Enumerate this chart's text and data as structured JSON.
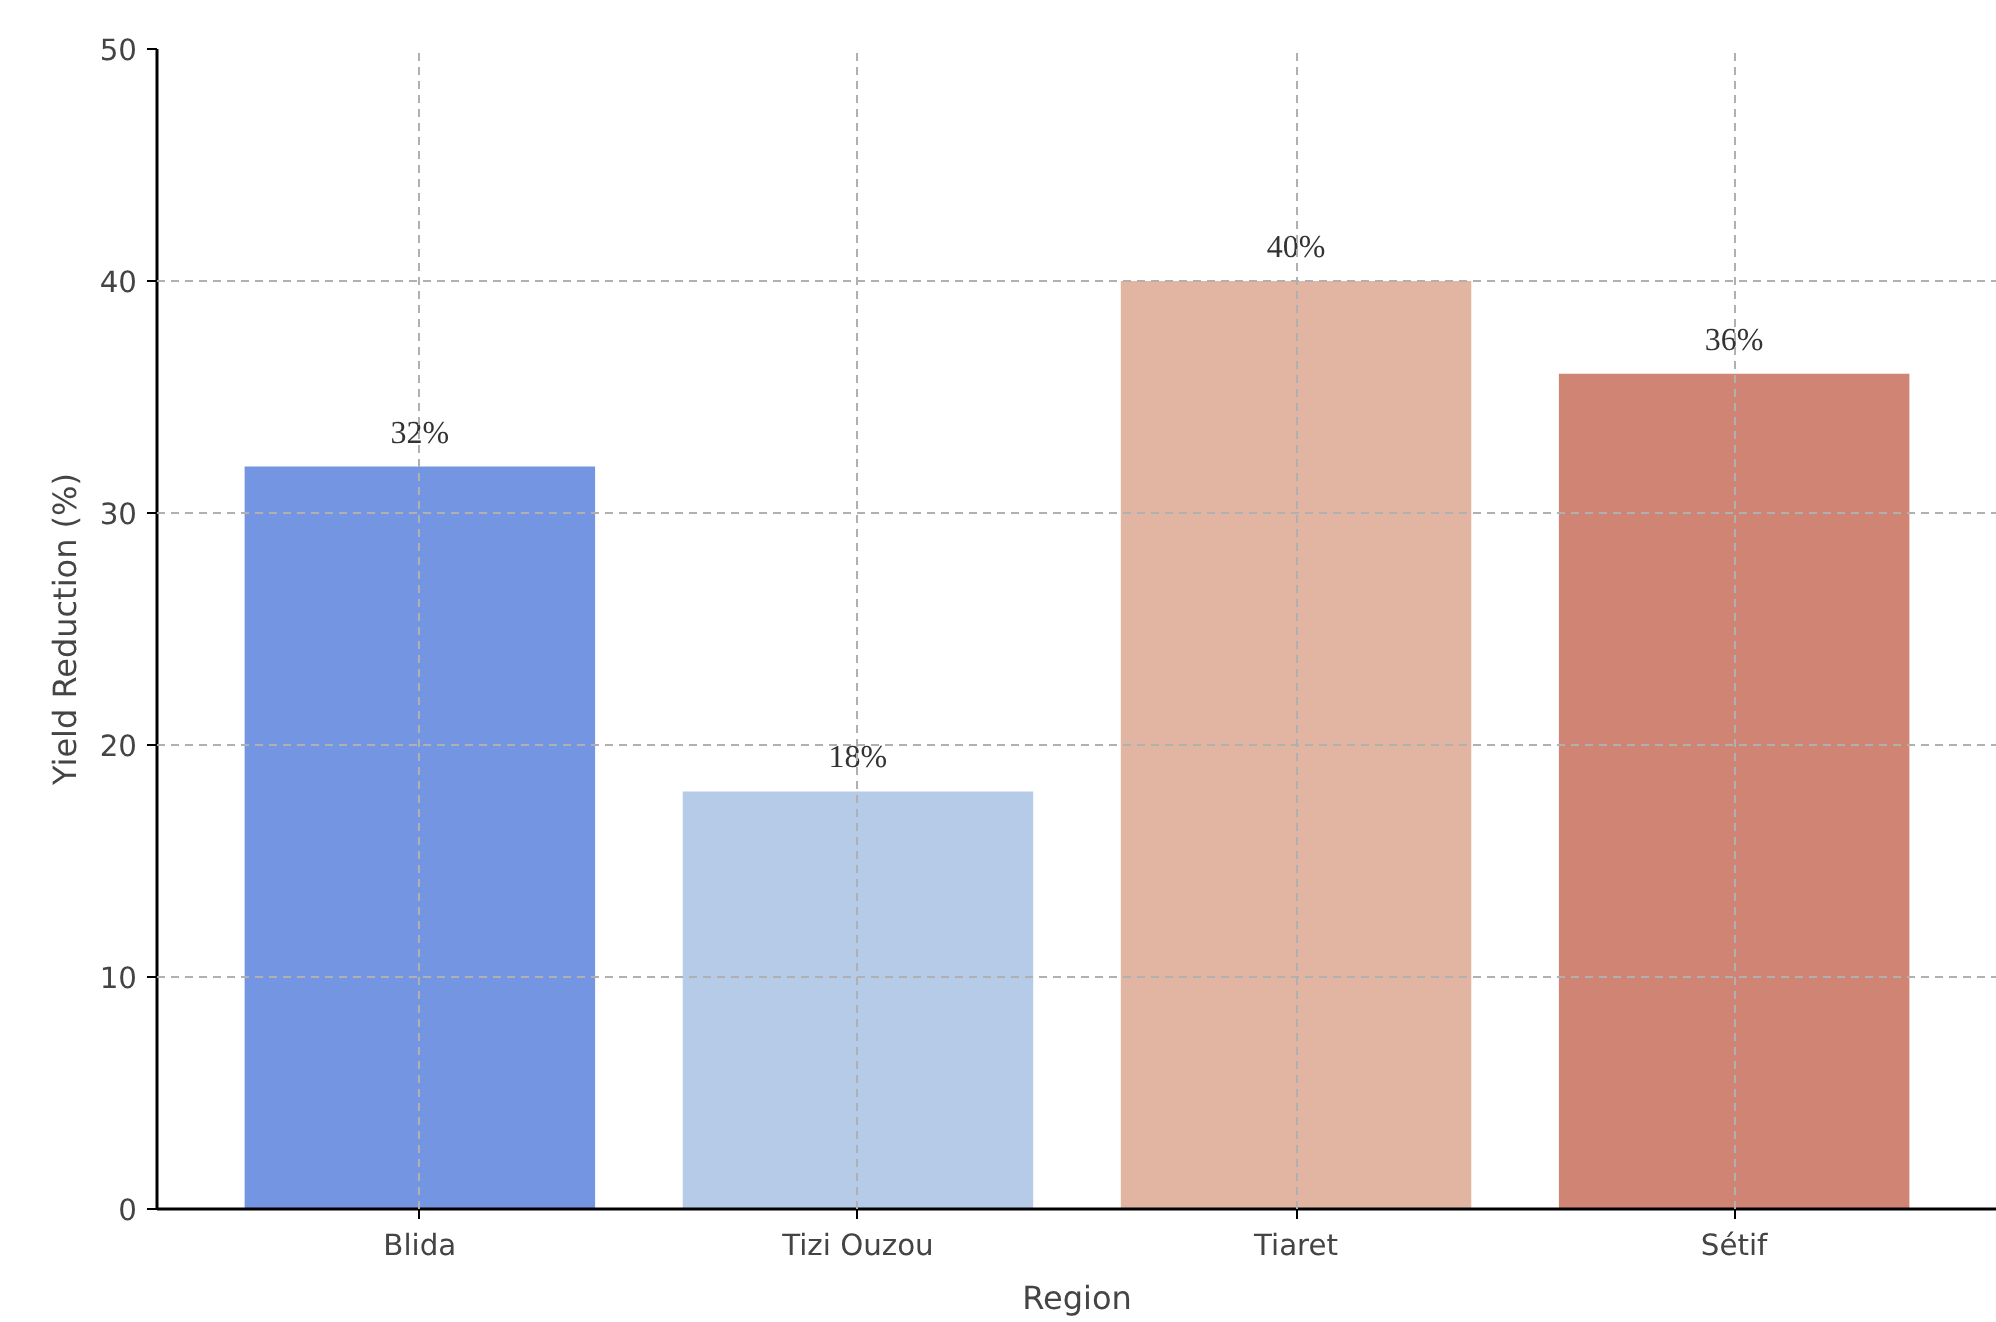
{
  "chart_data": {
    "type": "bar",
    "xlabel": "Region",
    "ylabel": "Yield Reduction (%)",
    "categories": [
      "Blida",
      "Tizi Ouzou",
      "Tiaret",
      "Sétif"
    ],
    "values": [
      32,
      18,
      40,
      36
    ],
    "colors": [
      "#7496e2",
      "#b5cbe8",
      "#e2b5a3",
      "#d08473"
    ],
    "value_labels": [
      "32%",
      "18%",
      "40%",
      "36%"
    ],
    "ylim": [
      0,
      50
    ],
    "yticks": [
      0,
      10,
      20,
      30,
      40,
      50
    ],
    "grid": true
  }
}
